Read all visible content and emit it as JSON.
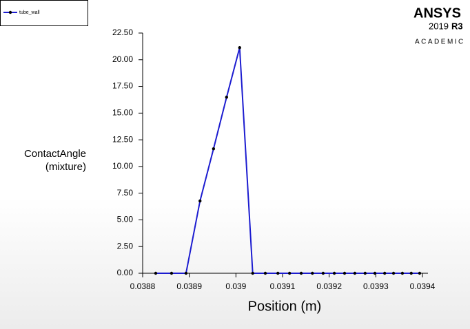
{
  "chart_data": {
    "type": "line",
    "xlabel": "Position (m)",
    "ylabel": [
      "ContactAngle",
      "(mixture)"
    ],
    "legend_position": "upper-left",
    "logo": {
      "name": "ANSYS",
      "version": "2019",
      "release": "R3",
      "edition": "ACADEMIC"
    },
    "x": [
      0.038828,
      0.038862,
      0.038893,
      0.038923,
      0.038952,
      0.03898,
      0.039008,
      0.039036,
      0.039063,
      0.03909,
      0.039115,
      0.03914,
      0.039164,
      0.039187,
      0.039211,
      0.039233,
      0.039255,
      0.039277,
      0.039298,
      0.039319,
      0.039338,
      0.039357,
      0.039376,
      0.039394
    ],
    "series": [
      {
        "name": "tube_wall",
        "color": "#1c1cd0",
        "marker_color": "#000000",
        "values": [
          0,
          0,
          0,
          6.77,
          11.66,
          16.49,
          21.13,
          0,
          0,
          0,
          0,
          0,
          0,
          0,
          0,
          0,
          0,
          0,
          0,
          0,
          0,
          0,
          0,
          0
        ]
      }
    ],
    "xlim": [
      0.0388,
      0.0394
    ],
    "xticks": [
      0.0388,
      0.0389,
      0.039,
      0.0391,
      0.0392,
      0.0393,
      0.0394
    ],
    "ylim": [
      0,
      22.5
    ],
    "yticks": [
      {
        "value": 0,
        "label": "0.00"
      },
      {
        "value": 2.5,
        "label": "2.50"
      },
      {
        "value": 5,
        "label": "5.00"
      },
      {
        "value": 7.5,
        "label": "7.50"
      },
      {
        "value": 10,
        "label": "10.00"
      },
      {
        "value": 12.5,
        "label": "12.50"
      },
      {
        "value": 15,
        "label": "15.00"
      },
      {
        "value": 17.5,
        "label": "17.50"
      },
      {
        "value": 20,
        "label": "20.00"
      },
      {
        "value": 22.5,
        "label": "22.50"
      }
    ]
  }
}
